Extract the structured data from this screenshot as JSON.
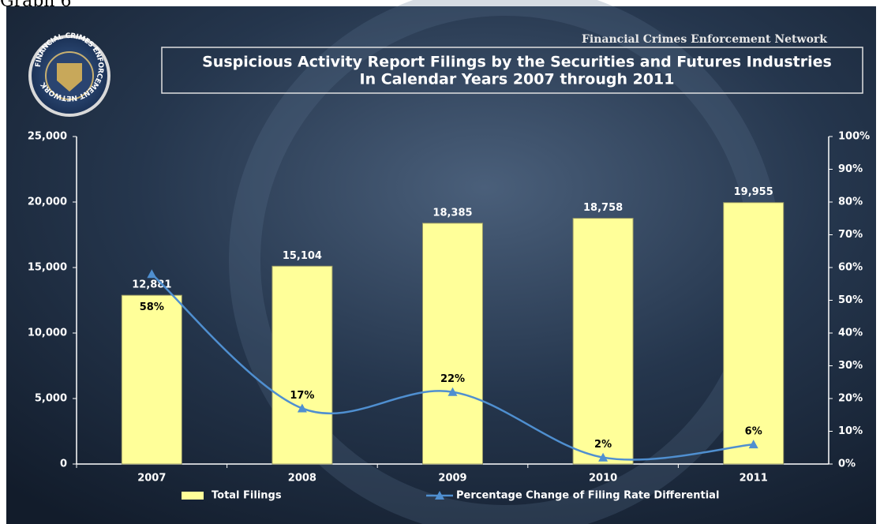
{
  "label": "Graph 6",
  "logo_text": "FINANCIAL CRIMES ENFORCEMENT NETWORK",
  "header": "Financial Crimes Enforcement Network",
  "chart_data": {
    "type": "bar",
    "title_lines": [
      "Suspicious Activity Report Filings by the Securities and Futures Industries",
      "In Calendar Years 2007 through 2011"
    ],
    "categories": [
      "2007",
      "2008",
      "2009",
      "2010",
      "2011"
    ],
    "series": [
      {
        "name": "Total Filings",
        "type": "bar",
        "color": "#ffff99",
        "values": [
          12881,
          15104,
          18385,
          18758,
          19955
        ],
        "value_labels": [
          "12,881",
          "15,104",
          "18,385",
          "18,758",
          "19,955"
        ]
      },
      {
        "name": "Percentage Change of Filing Rate Differential",
        "type": "line",
        "axis": "y2",
        "color": "#4f8fd0",
        "values": [
          58,
          17,
          22,
          2,
          6
        ],
        "value_labels": [
          "58%",
          "17%",
          "22%",
          "2%",
          "6%"
        ]
      }
    ],
    "ylim": [
      0,
      25000
    ],
    "yticks": [
      0,
      {
        "value": 5000,
        "label": "5,000"
      },
      {
        "value": 10000,
        "label": "10,000"
      },
      {
        "value": 15000,
        "label": "15,000"
      },
      {
        "value": 20000,
        "label": "20,000"
      },
      {
        "value": 25000,
        "label": "25,000"
      }
    ],
    "y2lim": [
      0,
      100
    ],
    "y2ticks": [
      {
        "value": 0,
        "label": "0%"
      },
      {
        "value": 10,
        "label": "10%"
      },
      {
        "value": 20,
        "label": "20%"
      },
      {
        "value": 30,
        "label": "30%"
      },
      {
        "value": 40,
        "label": "40%"
      },
      {
        "value": 50,
        "label": "50%"
      },
      {
        "value": 60,
        "label": "60%"
      },
      {
        "value": 70,
        "label": "70%"
      },
      {
        "value": 80,
        "label": "80%"
      },
      {
        "value": 90,
        "label": "90%"
      },
      {
        "value": 100,
        "label": "100%"
      }
    ]
  }
}
